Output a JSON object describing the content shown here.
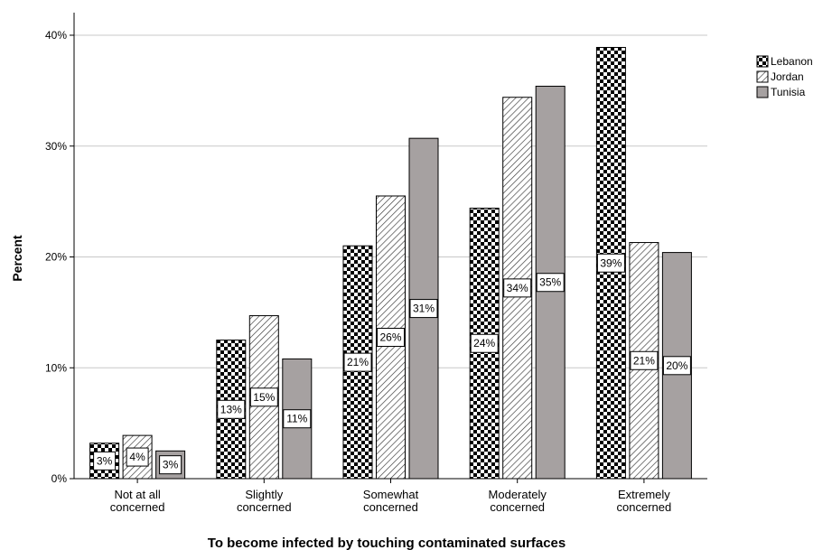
{
  "chart_data": {
    "type": "bar",
    "xlabel": "To become infected by touching contaminated surfaces",
    "ylabel": "Percent",
    "ylim": [
      0,
      40
    ],
    "yticks": [
      "0%",
      "10%",
      "20%",
      "30%",
      "40%"
    ],
    "grid": true,
    "legend_position": "top-right",
    "categories": [
      [
        "Not at all",
        "concerned"
      ],
      [
        "Slightly",
        "concerned"
      ],
      [
        "Somewhat",
        "concerned"
      ],
      [
        "Moderately",
        "concerned"
      ],
      [
        "Extremely",
        "concerned"
      ]
    ],
    "series": [
      {
        "name": "Lebanon",
        "pattern": "checker",
        "values": [
          3.2,
          12.5,
          21.0,
          24.4,
          38.9
        ],
        "labels": [
          "3%",
          "13%",
          "21%",
          "24%",
          "39%"
        ]
      },
      {
        "name": "Jordan",
        "pattern": "hatch",
        "values": [
          3.9,
          14.7,
          25.5,
          34.4,
          21.3
        ],
        "labels": [
          "4%",
          "15%",
          "26%",
          "34%",
          "21%"
        ]
      },
      {
        "name": "Tunisia",
        "pattern": "solid",
        "color": "#a6a1a1",
        "values": [
          2.5,
          10.8,
          30.7,
          35.4,
          20.4
        ],
        "labels": [
          "3%",
          "11%",
          "31%",
          "35%",
          "20%"
        ]
      }
    ]
  }
}
